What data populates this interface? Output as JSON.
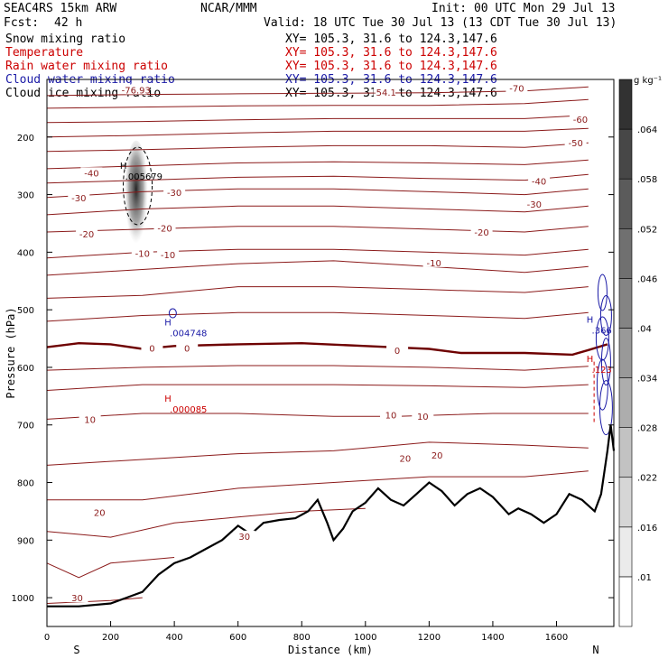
{
  "header": {
    "model": "SEAC4RS 15km ARW",
    "org": "NCAR/MMM",
    "init": "Init: 00 UTC Mon 29 Jul 13",
    "fcst_label": "Fcst:",
    "fcst_value": "42 h",
    "valid": "Valid: 18 UTC Tue 30 Jul 13 (13 CDT Tue 30 Jul 13)",
    "fields": [
      {
        "name": "Snow mixing ratio",
        "color": "#000000"
      },
      {
        "name": "Temperature",
        "color": "#cc0000"
      },
      {
        "name": "Rain water mixing ratio",
        "color": "#cc0000"
      },
      {
        "name": "Cloud water mixing ratio",
        "color": "#0000cc"
      },
      {
        "name": "Cloud ice mixing ratio",
        "color": "#000000"
      }
    ],
    "xy_text": "XY= 105.3, 31.6 to 124.3,147.6"
  },
  "chart_data": {
    "type": "cross-section",
    "xlabel": "Distance (km)",
    "ylabel": "Pressure (hPa)",
    "xlim": [
      0,
      1780
    ],
    "ylim": [
      1050,
      100
    ],
    "xticks": [
      0,
      200,
      400,
      600,
      800,
      1000,
      1200,
      1400,
      1600
    ],
    "yticks": [
      200,
      300,
      400,
      500,
      600,
      700,
      800,
      900,
      1000
    ],
    "x_end_labels": {
      "left": "S",
      "right": "N"
    },
    "colorbar": {
      "unit": "g kg⁻¹",
      "levels": [
        ".01",
        ".016",
        ".022",
        ".028",
        ".034",
        ".04",
        ".046",
        ".052",
        ".058",
        ".064"
      ]
    },
    "temperature_levels": [
      30,
      20,
      10,
      0,
      -10,
      -20,
      -30,
      -40,
      -50,
      -60
    ],
    "temperature_contours": [
      {
        "level": 30,
        "points": [
          [
            0,
            1010
          ],
          [
            200,
            1005
          ],
          [
            300,
            1000
          ]
        ]
      },
      {
        "level": 25,
        "points": [
          [
            0,
            940
          ],
          [
            100,
            965
          ],
          [
            200,
            940
          ],
          [
            300,
            935
          ],
          [
            400,
            930
          ]
        ]
      },
      {
        "level": 20,
        "points": [
          [
            0,
            885
          ],
          [
            200,
            895
          ],
          [
            400,
            870
          ],
          [
            600,
            860
          ],
          [
            800,
            850
          ],
          [
            1000,
            845
          ]
        ]
      },
      {
        "level": 15,
        "points": [
          [
            0,
            830
          ],
          [
            300,
            830
          ],
          [
            600,
            810
          ],
          [
            900,
            800
          ],
          [
            1200,
            790
          ],
          [
            1500,
            790
          ],
          [
            1700,
            780
          ]
        ]
      },
      {
        "level": 20,
        "points": [
          [
            0,
            770
          ],
          [
            300,
            760
          ],
          [
            600,
            750
          ],
          [
            900,
            745
          ],
          [
            1100,
            735
          ],
          [
            1200,
            730
          ],
          [
            1500,
            735
          ],
          [
            1700,
            740
          ]
        ]
      },
      {
        "level": 10,
        "points": [
          [
            0,
            690
          ],
          [
            300,
            680
          ],
          [
            600,
            680
          ],
          [
            900,
            685
          ],
          [
            1100,
            685
          ],
          [
            1400,
            680
          ],
          [
            1700,
            680
          ]
        ]
      },
      {
        "level": 5,
        "points": [
          [
            0,
            640
          ],
          [
            300,
            630
          ],
          [
            600,
            630
          ],
          [
            900,
            630
          ],
          [
            1200,
            632
          ],
          [
            1500,
            635
          ],
          [
            1700,
            630
          ]
        ]
      },
      {
        "level": 3,
        "points": [
          [
            0,
            605
          ],
          [
            300,
            600
          ],
          [
            600,
            597
          ],
          [
            900,
            597
          ],
          [
            1200,
            600
          ],
          [
            1500,
            605
          ],
          [
            1700,
            598
          ]
        ]
      },
      {
        "level": 0,
        "points": [
          [
            0,
            565
          ],
          [
            100,
            558
          ],
          [
            200,
            560
          ],
          [
            300,
            568
          ],
          [
            400,
            563
          ],
          [
            600,
            560
          ],
          [
            800,
            558
          ],
          [
            1000,
            563
          ],
          [
            1200,
            568
          ],
          [
            1300,
            575
          ],
          [
            1500,
            575
          ],
          [
            1650,
            578
          ],
          [
            1700,
            570
          ],
          [
            1760,
            560
          ]
        ]
      },
      {
        "level": -5,
        "points": [
          [
            0,
            520
          ],
          [
            300,
            510
          ],
          [
            600,
            505
          ],
          [
            900,
            505
          ],
          [
            1200,
            510
          ],
          [
            1500,
            515
          ],
          [
            1700,
            505
          ]
        ]
      },
      {
        "level": -8,
        "points": [
          [
            0,
            480
          ],
          [
            300,
            475
          ],
          [
            600,
            460
          ],
          [
            900,
            460
          ],
          [
            1200,
            465
          ],
          [
            1500,
            470
          ],
          [
            1700,
            460
          ]
        ]
      },
      {
        "level": -10,
        "points": [
          [
            0,
            440
          ],
          [
            300,
            430
          ],
          [
            600,
            420
          ],
          [
            900,
            415
          ],
          [
            1200,
            425
          ],
          [
            1500,
            435
          ],
          [
            1700,
            425
          ]
        ]
      },
      {
        "level": -15,
        "points": [
          [
            0,
            410
          ],
          [
            300,
            400
          ],
          [
            600,
            395
          ],
          [
            900,
            395
          ],
          [
            1200,
            400
          ],
          [
            1500,
            405
          ],
          [
            1700,
            395
          ]
        ]
      },
      {
        "level": -20,
        "points": [
          [
            0,
            365
          ],
          [
            300,
            360
          ],
          [
            600,
            355
          ],
          [
            900,
            355
          ],
          [
            1200,
            360
          ],
          [
            1500,
            365
          ],
          [
            1700,
            355
          ]
        ]
      },
      {
        "level": -25,
        "points": [
          [
            0,
            335
          ],
          [
            300,
            325
          ],
          [
            600,
            320
          ],
          [
            900,
            320
          ],
          [
            1200,
            325
          ],
          [
            1500,
            330
          ],
          [
            1700,
            320
          ]
        ]
      },
      {
        "level": -30,
        "points": [
          [
            0,
            305
          ],
          [
            300,
            295
          ],
          [
            600,
            290
          ],
          [
            900,
            290
          ],
          [
            1200,
            295
          ],
          [
            1500,
            300
          ],
          [
            1700,
            290
          ]
        ]
      },
      {
        "level": -35,
        "points": [
          [
            0,
            280
          ],
          [
            300,
            275
          ],
          [
            600,
            270
          ],
          [
            900,
            268
          ],
          [
            1200,
            272
          ],
          [
            1500,
            275
          ],
          [
            1700,
            265
          ]
        ]
      },
      {
        "level": -40,
        "points": [
          [
            0,
            255
          ],
          [
            300,
            250
          ],
          [
            600,
            245
          ],
          [
            900,
            243
          ],
          [
            1200,
            245
          ],
          [
            1500,
            248
          ],
          [
            1700,
            240
          ]
        ]
      },
      {
        "level": -45,
        "points": [
          [
            0,
            225
          ],
          [
            300,
            222
          ],
          [
            600,
            218
          ],
          [
            900,
            215
          ],
          [
            1200,
            215
          ],
          [
            1500,
            218
          ],
          [
            1700,
            210
          ]
        ]
      },
      {
        "level": -50,
        "points": [
          [
            0,
            200
          ],
          [
            300,
            197
          ],
          [
            600,
            193
          ],
          [
            900,
            190
          ],
          [
            1200,
            190
          ],
          [
            1500,
            190
          ],
          [
            1700,
            185
          ]
        ]
      },
      {
        "level": -55,
        "points": [
          [
            0,
            175
          ],
          [
            300,
            173
          ],
          [
            600,
            170
          ],
          [
            900,
            168
          ],
          [
            1200,
            168
          ],
          [
            1500,
            168
          ],
          [
            1700,
            162
          ]
        ]
      },
      {
        "level": -60,
        "points": [
          [
            0,
            150
          ],
          [
            300,
            148
          ],
          [
            600,
            146
          ],
          [
            900,
            145
          ],
          [
            1200,
            145
          ],
          [
            1500,
            142
          ],
          [
            1700,
            135
          ]
        ]
      },
      {
        "level": -65,
        "points": [
          [
            0,
            128
          ],
          [
            300,
            126
          ],
          [
            600,
            125
          ],
          [
            900,
            124
          ],
          [
            1200,
            123
          ],
          [
            1500,
            120
          ],
          [
            1700,
            113
          ]
        ]
      }
    ],
    "temperature_labels": [
      {
        "text": "30",
        "x": 95,
        "p": 1000
      },
      {
        "text": "30",
        "x": 620,
        "p": 893
      },
      {
        "text": "20",
        "x": 165,
        "p": 852
      },
      {
        "text": "20",
        "x": 1125,
        "p": 758
      },
      {
        "text": "20",
        "x": 1225,
        "p": 752
      },
      {
        "text": "10",
        "x": 135,
        "p": 690
      },
      {
        "text": "10",
        "x": 1080,
        "p": 682
      },
      {
        "text": "10",
        "x": 1180,
        "p": 685
      },
      {
        "text": "0",
        "x": 330,
        "p": 566
      },
      {
        "text": "0",
        "x": 440,
        "p": 566
      },
      {
        "text": "0",
        "x": 1100,
        "p": 570
      },
      {
        "text": "-10",
        "x": 300,
        "p": 402
      },
      {
        "text": "-10",
        "x": 380,
        "p": 404
      },
      {
        "text": "-10",
        "x": 1215,
        "p": 418
      },
      {
        "text": "-20",
        "x": 125,
        "p": 368
      },
      {
        "text": "-20",
        "x": 370,
        "p": 358
      },
      {
        "text": "-20",
        "x": 1365,
        "p": 365
      },
      {
        "text": "-30",
        "x": 100,
        "p": 305
      },
      {
        "text": "-30",
        "x": 400,
        "p": 296
      },
      {
        "text": "-30",
        "x": 1530,
        "p": 316
      },
      {
        "text": "-40",
        "x": 140,
        "p": 262
      },
      {
        "text": "-40",
        "x": 1545,
        "p": 276
      },
      {
        "text": "-50",
        "x": 1660,
        "p": 210
      },
      {
        "text": "-60",
        "x": 1675,
        "p": 169
      },
      {
        "text": "-70",
        "x": 1475,
        "p": 115
      },
      {
        "text": "-76.93",
        "x": 280,
        "p": 118
      },
      {
        "text": "-54.1",
        "x": 1060,
        "p": 122
      }
    ],
    "maxima": [
      {
        "label": "H",
        "value": ".005679",
        "x": 240,
        "p": 268,
        "color": "#000000"
      },
      {
        "label": "H",
        "value": ".004748",
        "x": 380,
        "p": 540,
        "color": "#1a1aa6"
      },
      {
        "label": "H",
        "value": ".000085",
        "x": 380,
        "p": 672,
        "color": "#cc0000"
      },
      {
        "label": "H",
        "value": ".366",
        "x": 1705,
        "p": 535,
        "color": "#1a1aa6"
      },
      {
        "label": "H",
        "value": ".123",
        "x": 1705,
        "p": 603,
        "color": "#cc0000"
      }
    ],
    "terrain": {
      "points": [
        [
          0,
          1015
        ],
        [
          100,
          1015
        ],
        [
          200,
          1010
        ],
        [
          250,
          1000
        ],
        [
          300,
          990
        ],
        [
          350,
          960
        ],
        [
          400,
          940
        ],
        [
          450,
          930
        ],
        [
          500,
          915
        ],
        [
          550,
          900
        ],
        [
          600,
          875
        ],
        [
          640,
          890
        ],
        [
          680,
          870
        ],
        [
          730,
          865
        ],
        [
          780,
          862
        ],
        [
          820,
          850
        ],
        [
          850,
          830
        ],
        [
          880,
          870
        ],
        [
          900,
          900
        ],
        [
          930,
          880
        ],
        [
          960,
          850
        ],
        [
          1000,
          835
        ],
        [
          1040,
          810
        ],
        [
          1080,
          830
        ],
        [
          1120,
          840
        ],
        [
          1160,
          820
        ],
        [
          1200,
          800
        ],
        [
          1240,
          815
        ],
        [
          1280,
          840
        ],
        [
          1320,
          820
        ],
        [
          1360,
          810
        ],
        [
          1400,
          825
        ],
        [
          1450,
          855
        ],
        [
          1480,
          845
        ],
        [
          1520,
          855
        ],
        [
          1560,
          870
        ],
        [
          1600,
          855
        ],
        [
          1640,
          820
        ],
        [
          1680,
          830
        ],
        [
          1720,
          850
        ],
        [
          1740,
          820
        ],
        [
          1760,
          745
        ],
        [
          1770,
          700
        ],
        [
          1780,
          745
        ]
      ]
    },
    "freezing_level_label": "0"
  }
}
